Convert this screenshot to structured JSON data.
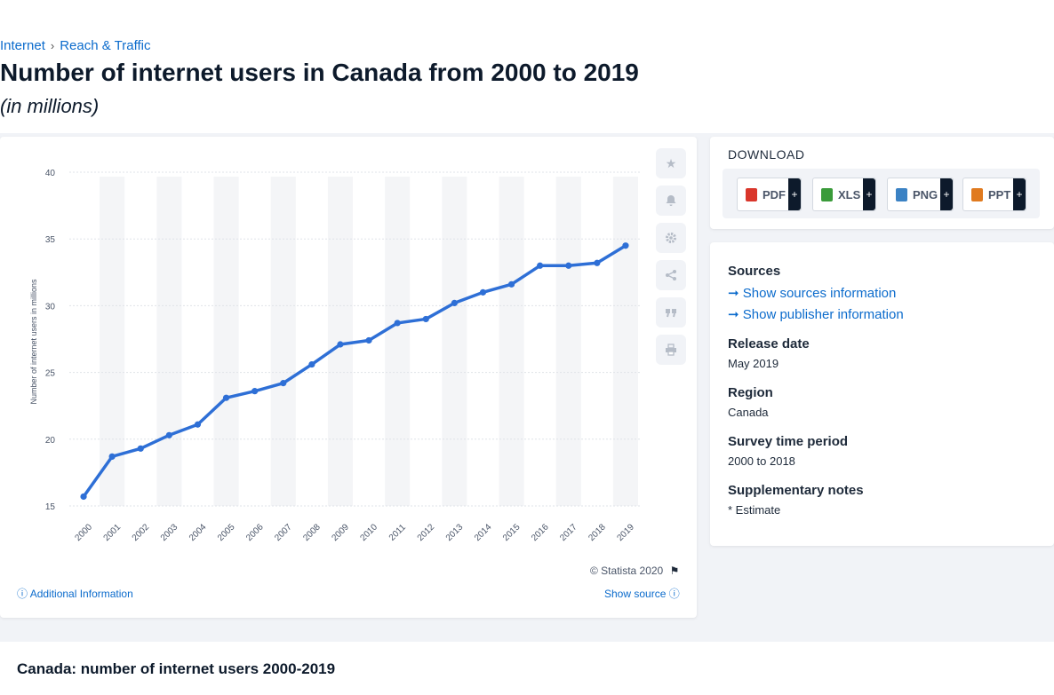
{
  "breadcrumb": {
    "item1": "Internet",
    "item2": "Reach & Traffic"
  },
  "title": "Number of internet users in Canada from 2000 to 2019",
  "subtitle": "(in millions)",
  "chart_data": {
    "type": "line",
    "title": "Number of internet users in Canada from 2000 to 2019",
    "xlabel": "",
    "ylabel": "Number of internet users in millions",
    "categories": [
      "2000",
      "2001",
      "2002",
      "2003",
      "2004",
      "2005",
      "2006",
      "2007",
      "2008",
      "2009",
      "2010",
      "2011",
      "2012",
      "2013",
      "2014",
      "2015",
      "2016",
      "2017",
      "2018",
      "2019"
    ],
    "values": [
      15.7,
      18.7,
      19.3,
      20.3,
      21.1,
      23.1,
      23.6,
      24.2,
      25.6,
      27.1,
      27.4,
      28.7,
      29.0,
      30.2,
      31.0,
      31.6,
      33.0,
      33.0,
      33.2,
      34.5
    ],
    "yticks": [
      15,
      20,
      25,
      30,
      35,
      40
    ],
    "ylim": [
      15,
      40
    ],
    "color": "#2e6fd6"
  },
  "chart_footer": {
    "copyright": "© Statista 2020",
    "additional_info": "Additional Information",
    "show_source": "Show source"
  },
  "download": {
    "title": "DOWNLOAD",
    "buttons": [
      {
        "label": "PDF",
        "color": "#d9362b"
      },
      {
        "label": "XLS",
        "color": "#3a9b3a"
      },
      {
        "label": "PNG",
        "color": "#3b82c4"
      },
      {
        "label": "PPT",
        "color": "#e07a1f"
      }
    ],
    "plus": "+"
  },
  "meta": {
    "sources_heading": "Sources",
    "show_sources": "Show sources information",
    "show_publisher": "Show publisher information",
    "release_heading": "Release date",
    "release_value": "May 2019",
    "region_heading": "Region",
    "region_value": "Canada",
    "survey_heading": "Survey time period",
    "survey_value": "2000 to 2018",
    "notes_heading": "Supplementary notes",
    "notes_value": "* Estimate"
  },
  "bottom_title": "Canada: number of internet users 2000-2019"
}
